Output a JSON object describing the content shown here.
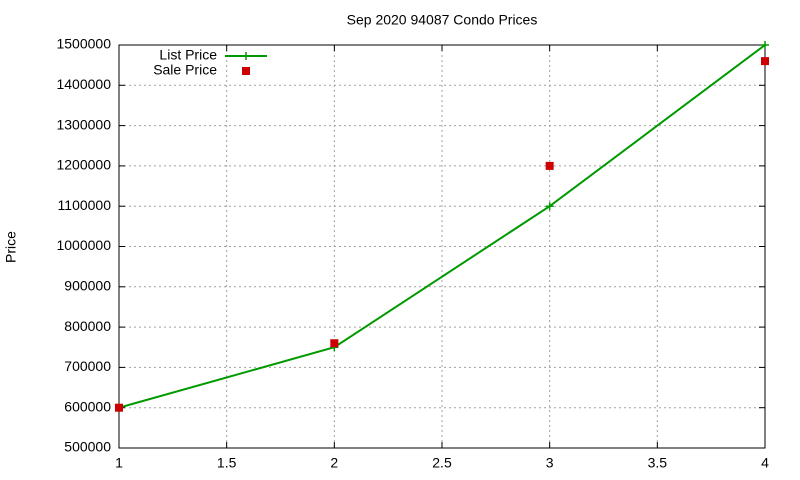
{
  "chart_data": {
    "type": "line",
    "title": "Sep 2020 94087 Condo Prices",
    "y_label": "Price",
    "x": [
      1,
      2,
      3,
      4
    ],
    "series": [
      {
        "name": "List Price",
        "color": "#009900",
        "style": "linespoints",
        "values": [
          600000,
          750000,
          1100000,
          1500000
        ]
      },
      {
        "name": "Sale Price",
        "color": "#cc0000",
        "style": "points",
        "values": [
          600000,
          760000,
          1200000,
          1460000
        ]
      }
    ],
    "xlim": [
      1,
      4
    ],
    "xticks": [
      1,
      1.5,
      2,
      2.5,
      3,
      3.5,
      4
    ],
    "ylim": [
      500000,
      1500000
    ],
    "yticks": [
      500000,
      600000,
      700000,
      800000,
      900000,
      1000000,
      1100000,
      1200000,
      1300000,
      1400000,
      1500000
    ],
    "grid": true,
    "legend": "top-left"
  }
}
